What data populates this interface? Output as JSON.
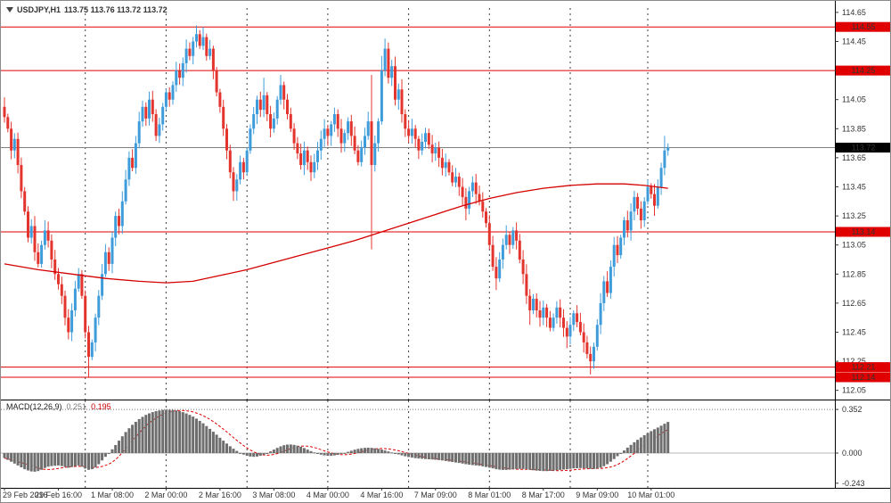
{
  "window": {
    "title_symbol": "USDJPY,H1",
    "title_ohlc": "113.75 113.76 113.72 113.72"
  },
  "chart_data": {
    "type": "candlestick",
    "symbol": "USDJPY",
    "timeframe": "H1",
    "x_labels": [
      {
        "i": 0,
        "t": "29 Feb 2016"
      },
      {
        "i": 16,
        "t": "29 Feb 16:00"
      },
      {
        "i": 32,
        "t": "1 Mar 08:00"
      },
      {
        "i": 48,
        "t": "2 Mar 00:00"
      },
      {
        "i": 64,
        "t": "2 Mar 16:00"
      },
      {
        "i": 80,
        "t": "3 Mar 08:00"
      },
      {
        "i": 96,
        "t": "4 Mar 00:00"
      },
      {
        "i": 112,
        "t": "4 Mar 16:00"
      },
      {
        "i": 128,
        "t": "7 Mar 09:00"
      },
      {
        "i": 144,
        "t": "8 Mar 01:00"
      },
      {
        "i": 160,
        "t": "8 Mar 17:00"
      },
      {
        "i": 176,
        "t": "9 Mar 09:00"
      },
      {
        "i": 192,
        "t": "10 Mar 01:00"
      }
    ],
    "day_separators": [
      24,
      48,
      72,
      96,
      120,
      144,
      168,
      191
    ],
    "price_axis_ticks": [
      "114.65",
      "114.45",
      "114.25",
      "114.05",
      "113.85",
      "113.65",
      "113.45",
      "113.25",
      "113.05",
      "112.85",
      "112.65",
      "112.45",
      "112.25",
      "112.05"
    ],
    "level_lines": [
      {
        "price": 114.55,
        "label": "114.55"
      },
      {
        "price": 114.25,
        "label": "114.25"
      },
      {
        "price": 113.14,
        "label": "113.14"
      },
      {
        "price": 112.21,
        "label": "112.21"
      },
      {
        "price": 112.14,
        "label": "112.14"
      }
    ],
    "current": {
      "price": 113.72,
      "label": "113.72"
    },
    "first_open": 114.0,
    "closes": [
      113.93,
      113.85,
      113.7,
      113.78,
      113.6,
      113.42,
      113.28,
      113.1,
      113.18,
      113.0,
      112.92,
      113.05,
      113.15,
      113.08,
      112.95,
      112.85,
      112.78,
      112.7,
      112.55,
      112.45,
      112.6,
      112.75,
      112.85,
      112.7,
      112.45,
      112.28,
      112.38,
      112.55,
      112.7,
      112.85,
      113.0,
      112.92,
      113.1,
      113.25,
      113.18,
      113.35,
      113.5,
      113.65,
      113.58,
      113.75,
      113.9,
      114.0,
      113.92,
      114.05,
      113.95,
      113.8,
      113.88,
      114.0,
      114.1,
      114.05,
      114.15,
      114.25,
      114.2,
      114.3,
      114.4,
      114.35,
      114.45,
      114.5,
      114.42,
      114.48,
      114.35,
      114.4,
      114.25,
      114.1,
      114.0,
      113.85,
      113.7,
      113.55,
      113.42,
      113.5,
      113.62,
      113.55,
      113.7,
      113.85,
      113.95,
      114.05,
      113.98,
      114.08,
      113.95,
      113.85,
      113.92,
      114.05,
      114.15,
      114.05,
      113.95,
      113.85,
      113.75,
      113.68,
      113.6,
      113.7,
      113.62,
      113.55,
      113.62,
      113.7,
      113.78,
      113.85,
      113.8,
      113.88,
      113.95,
      113.85,
      113.75,
      113.82,
      113.9,
      113.8,
      113.7,
      113.62,
      113.72,
      113.8,
      113.9,
      113.6,
      113.75,
      113.9,
      114.25,
      114.4,
      114.2,
      114.28,
      114.05,
      114.12,
      113.95,
      113.85,
      113.8,
      113.85,
      113.78,
      113.7,
      113.76,
      113.82,
      113.74,
      113.68,
      113.72,
      113.65,
      113.58,
      113.62,
      113.55,
      113.48,
      113.52,
      113.45,
      113.38,
      113.3,
      113.42,
      113.48,
      113.4,
      113.35,
      113.28,
      113.2,
      113.05,
      112.9,
      112.82,
      112.95,
      113.05,
      113.12,
      113.05,
      113.15,
      113.08,
      112.95,
      112.85,
      112.7,
      112.6,
      112.68,
      112.6,
      112.55,
      112.62,
      112.55,
      112.48,
      112.55,
      112.62,
      112.55,
      112.48,
      112.42,
      112.5,
      112.58,
      112.52,
      112.45,
      112.38,
      112.3,
      112.25,
      112.35,
      112.5,
      112.65,
      112.8,
      112.72,
      112.9,
      113.05,
      112.98,
      113.1,
      113.22,
      113.15,
      113.28,
      113.38,
      113.3,
      113.22,
      113.35,
      113.45,
      113.4,
      113.32,
      113.45,
      113.58,
      113.7,
      113.72
    ],
    "wick_overrides": {
      "19": {
        "low": 112.4
      },
      "25": {
        "low": 112.14
      },
      "57": {
        "high": 114.56
      },
      "59": {
        "high": 114.55
      },
      "77": {
        "high": 114.2
      },
      "82": {
        "high": 114.22
      },
      "109": {
        "high": 114.22,
        "low": 113.02
      },
      "112": {
        "high": 114.35
      },
      "113": {
        "high": 114.47
      },
      "137": {
        "low": 113.22
      },
      "146": {
        "low": 112.74
      },
      "156": {
        "low": 112.5
      },
      "167": {
        "low": 112.34
      },
      "174": {
        "low": 112.16
      },
      "196": {
        "high": 113.8
      }
    },
    "ma_points": [
      [
        0,
        112.92
      ],
      [
        10,
        112.88
      ],
      [
        20,
        112.85
      ],
      [
        30,
        112.82
      ],
      [
        40,
        112.8
      ],
      [
        48,
        112.79
      ],
      [
        56,
        112.8
      ],
      [
        64,
        112.84
      ],
      [
        72,
        112.88
      ],
      [
        80,
        112.93
      ],
      [
        88,
        112.98
      ],
      [
        96,
        113.03
      ],
      [
        104,
        113.08
      ],
      [
        112,
        113.14
      ],
      [
        120,
        113.2
      ],
      [
        128,
        113.26
      ],
      [
        136,
        113.32
      ],
      [
        144,
        113.37
      ],
      [
        152,
        113.41
      ],
      [
        160,
        113.44
      ],
      [
        168,
        113.46
      ],
      [
        176,
        113.47
      ],
      [
        184,
        113.47
      ],
      [
        190,
        113.46
      ],
      [
        197,
        113.44
      ]
    ],
    "macd": {
      "name": "MACD(12,26,9)",
      "value_main": "0.251",
      "value_signal": "0.195",
      "upper_level": 0.352,
      "axis_ticks": [
        {
          "v": 0.352,
          "t": "0.352"
        },
        {
          "v": 0,
          "t": "0.000"
        },
        {
          "v": -0.243,
          "t": "-0.243"
        }
      ],
      "hist": [
        -0.04,
        -0.055,
        -0.07,
        -0.085,
        -0.1,
        -0.115,
        -0.13,
        -0.14,
        -0.148,
        -0.15,
        -0.145,
        -0.135,
        -0.12,
        -0.11,
        -0.105,
        -0.102,
        -0.1,
        -0.105,
        -0.112,
        -0.118,
        -0.112,
        -0.105,
        -0.1,
        -0.11,
        -0.125,
        -0.135,
        -0.13,
        -0.115,
        -0.09,
        -0.06,
        -0.03,
        -0.005,
        0.03,
        0.065,
        0.1,
        0.135,
        0.17,
        0.2,
        0.228,
        0.252,
        0.274,
        0.292,
        0.308,
        0.32,
        0.33,
        0.338,
        0.344,
        0.348,
        0.35,
        0.35,
        0.348,
        0.344,
        0.338,
        0.33,
        0.32,
        0.308,
        0.294,
        0.278,
        0.26,
        0.24,
        0.218,
        0.195,
        0.172,
        0.148,
        0.124,
        0.1,
        0.077,
        0.055,
        0.035,
        0.017,
        0.001,
        -0.012,
        -0.022,
        -0.028,
        -0.03,
        -0.028,
        -0.022,
        -0.012,
        0.0,
        0.014,
        0.028,
        0.042,
        0.054,
        0.063,
        0.068,
        0.069,
        0.066,
        0.06,
        0.051,
        0.04,
        0.028,
        0.016,
        0.005,
        -0.005,
        -0.013,
        -0.019,
        -0.022,
        -0.022,
        -0.019,
        -0.014,
        -0.007,
        0.001,
        0.01,
        0.019,
        0.027,
        0.034,
        0.039,
        0.042,
        0.043,
        0.042,
        0.039,
        0.034,
        0.028,
        0.021,
        0.013,
        0.005,
        -0.003,
        -0.011,
        -0.019,
        -0.026,
        -0.032,
        -0.037,
        -0.041,
        -0.044,
        -0.046,
        -0.048,
        -0.05,
        -0.052,
        -0.054,
        -0.057,
        -0.06,
        -0.064,
        -0.068,
        -0.072,
        -0.076,
        -0.08,
        -0.085,
        -0.09,
        -0.094,
        -0.097,
        -0.1,
        -0.103,
        -0.107,
        -0.112,
        -0.118,
        -0.124,
        -0.13,
        -0.134,
        -0.136,
        -0.136,
        -0.134,
        -0.131,
        -0.128,
        -0.127,
        -0.128,
        -0.131,
        -0.135,
        -0.139,
        -0.142,
        -0.144,
        -0.145,
        -0.145,
        -0.144,
        -0.142,
        -0.139,
        -0.136,
        -0.133,
        -0.13,
        -0.127,
        -0.124,
        -0.122,
        -0.121,
        -0.122,
        -0.124,
        -0.127,
        -0.128,
        -0.125,
        -0.118,
        -0.106,
        -0.09,
        -0.07,
        -0.048,
        -0.025,
        -0.002,
        0.021,
        0.044,
        0.066,
        0.087,
        0.107,
        0.126,
        0.144,
        0.161,
        0.177,
        0.192,
        0.206,
        0.221,
        0.237,
        0.251
      ]
    },
    "colors": {
      "up": "#3e9cdb",
      "down": "#e3342e",
      "level": "#e00000",
      "ma": "#d40000",
      "hist": "#6e6e6e",
      "signal": "#e00000",
      "current_line": "#808080",
      "current_box": "#000000"
    }
  }
}
